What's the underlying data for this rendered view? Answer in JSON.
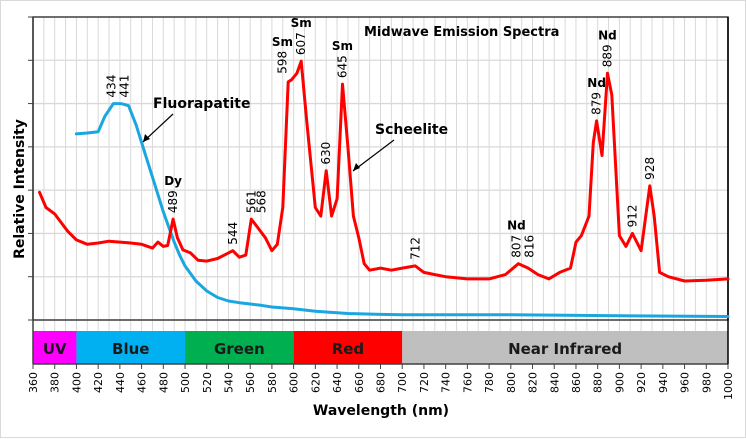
{
  "chart_data": {
    "type": "line",
    "title": "Midwave Emission Spectra",
    "xlabel": "Wavelength (nm)",
    "ylabel": "Relative Intensity",
    "xlim": [
      360,
      1000
    ],
    "ylim": [
      0,
      7
    ],
    "x_ticks": [
      360,
      380,
      400,
      420,
      440,
      460,
      480,
      500,
      520,
      540,
      560,
      580,
      600,
      620,
      640,
      660,
      680,
      700,
      720,
      740,
      760,
      780,
      800,
      820,
      840,
      860,
      880,
      900,
      920,
      940,
      960,
      980,
      1000
    ],
    "y_tick_labels_shown": false,
    "grid": true,
    "legend": "none",
    "spectral_bands": [
      {
        "label": "UV",
        "from": 360,
        "to": 400,
        "color": "#ff00ff"
      },
      {
        "label": "Blue",
        "from": 400,
        "to": 500,
        "color": "#00b0f0"
      },
      {
        "label": "Green",
        "from": 500,
        "to": 600,
        "color": "#00b050"
      },
      {
        "label": "Red",
        "from": 600,
        "to": 700,
        "color": "#ff0000"
      },
      {
        "label": "Near Infrared",
        "from": 700,
        "to": 1000,
        "color": "#bfbfbf"
      }
    ],
    "series": [
      {
        "name": "Fluorapatite",
        "color": "#1aa7e0",
        "x": [
          400,
          410,
          420,
          426,
          434,
          441,
          448,
          455,
          460,
          465,
          470,
          475,
          480,
          485,
          490,
          495,
          500,
          510,
          520,
          530,
          540,
          550,
          560,
          570,
          580,
          590,
          600,
          620,
          650,
          680,
          700,
          750,
          800,
          850,
          900,
          950,
          1000
        ],
        "y": [
          4.3,
          4.32,
          4.35,
          4.7,
          5.0,
          5.0,
          4.95,
          4.5,
          4.1,
          3.7,
          3.3,
          2.9,
          2.5,
          2.15,
          1.8,
          1.5,
          1.25,
          0.9,
          0.67,
          0.52,
          0.44,
          0.4,
          0.37,
          0.34,
          0.3,
          0.28,
          0.26,
          0.2,
          0.15,
          0.13,
          0.12,
          0.12,
          0.12,
          0.11,
          0.1,
          0.09,
          0.08
        ]
      },
      {
        "name": "Scheelite",
        "color": "#ff0000",
        "x": [
          366,
          372,
          380,
          386,
          392,
          400,
          410,
          420,
          430,
          440,
          450,
          460,
          470,
          475,
          480,
          484,
          489,
          493,
          498,
          505,
          512,
          520,
          530,
          540,
          544,
          550,
          556,
          561,
          568,
          574,
          580,
          585,
          590,
          595,
          598,
          603,
          607,
          612,
          620,
          625,
          630,
          635,
          640,
          645,
          650,
          655,
          660,
          665,
          670,
          680,
          690,
          700,
          712,
          720,
          730,
          740,
          760,
          780,
          795,
          807,
          816,
          825,
          835,
          845,
          855,
          860,
          865,
          872,
          876,
          879,
          884,
          889,
          893,
          900,
          906,
          912,
          920,
          928,
          932,
          937,
          945,
          960,
          980,
          1000
        ],
        "y": [
          2.95,
          2.6,
          2.45,
          2.25,
          2.05,
          1.85,
          1.75,
          1.78,
          1.82,
          1.8,
          1.78,
          1.75,
          1.66,
          1.8,
          1.7,
          1.72,
          2.33,
          1.9,
          1.62,
          1.55,
          1.38,
          1.36,
          1.42,
          1.55,
          1.6,
          1.45,
          1.5,
          2.33,
          2.1,
          1.9,
          1.6,
          1.75,
          2.6,
          5.5,
          5.55,
          5.7,
          5.98,
          4.6,
          2.6,
          2.4,
          3.45,
          2.4,
          2.8,
          5.45,
          4.0,
          2.4,
          1.9,
          1.3,
          1.15,
          1.2,
          1.15,
          1.2,
          1.25,
          1.1,
          1.05,
          1.0,
          0.95,
          0.95,
          1.05,
          1.3,
          1.2,
          1.05,
          0.95,
          1.1,
          1.2,
          1.8,
          1.95,
          2.4,
          4.1,
          4.6,
          3.8,
          5.7,
          5.2,
          1.95,
          1.7,
          2.0,
          1.6,
          3.1,
          2.4,
          1.1,
          1.0,
          0.9,
          0.92,
          0.95
        ]
      }
    ],
    "annotations": [
      {
        "text": "434",
        "series": "Fluorapatite",
        "x": 434
      },
      {
        "text": "441",
        "series": "Fluorapatite",
        "x": 441
      },
      {
        "text": "489",
        "element": "Dy",
        "series": "Scheelite",
        "x": 489
      },
      {
        "text": "544",
        "series": "Scheelite",
        "x": 544
      },
      {
        "text": "561",
        "series": "Scheelite",
        "x": 561
      },
      {
        "text": "568",
        "series": "Scheelite",
        "x": 568
      },
      {
        "text": "598",
        "element": "Sm",
        "series": "Scheelite",
        "x": 598
      },
      {
        "text": "607",
        "element": "Sm",
        "series": "Scheelite",
        "x": 607
      },
      {
        "text": "630",
        "series": "Scheelite",
        "x": 630
      },
      {
        "text": "645",
        "element": "Sm",
        "series": "Scheelite",
        "x": 645
      },
      {
        "text": "712",
        "series": "Scheelite",
        "x": 712
      },
      {
        "text": "807",
        "element": "Nd",
        "series": "Scheelite",
        "x": 807
      },
      {
        "text": "816",
        "series": "Scheelite",
        "x": 816
      },
      {
        "text": "879",
        "element": "Nd",
        "series": "Scheelite",
        "x": 879
      },
      {
        "text": "889",
        "element": "Nd",
        "series": "Scheelite",
        "x": 889
      },
      {
        "text": "912",
        "series": "Scheelite",
        "x": 912
      },
      {
        "text": "928",
        "series": "Scheelite",
        "x": 928
      }
    ],
    "series_callouts": [
      {
        "text": "Fluorapatite",
        "target_series": "Fluorapatite"
      },
      {
        "text": "Scheelite",
        "target_series": "Scheelite"
      }
    ]
  }
}
